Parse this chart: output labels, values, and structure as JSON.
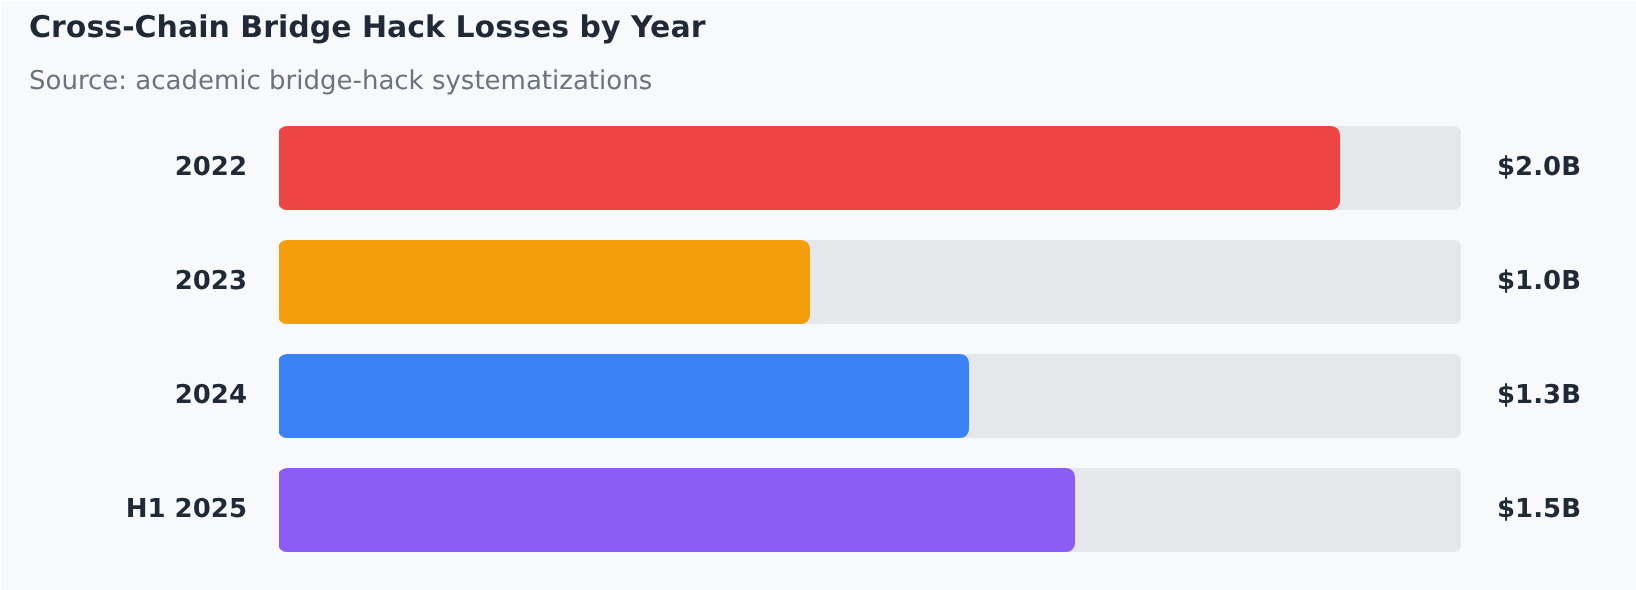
{
  "chart_data": {
    "type": "bar",
    "orientation": "horizontal",
    "title": "Cross-Chain Bridge Hack Losses by Year",
    "subtitle": "Source: academic bridge-hack systematizations",
    "categories": [
      "2022",
      "2023",
      "2024",
      "H1 2025"
    ],
    "values": [
      2.0,
      1.0,
      1.3,
      1.5
    ],
    "colors": [
      "#ef4444",
      "#f59e0b",
      "#3b82f6",
      "#8b5cf6"
    ],
    "value_labels": [
      "$2.0B",
      "$1.0B",
      "$1.3B",
      "$1.5B"
    ],
    "xlim": [
      0,
      2.23
    ],
    "grid": false,
    "tick_labels": "y"
  }
}
